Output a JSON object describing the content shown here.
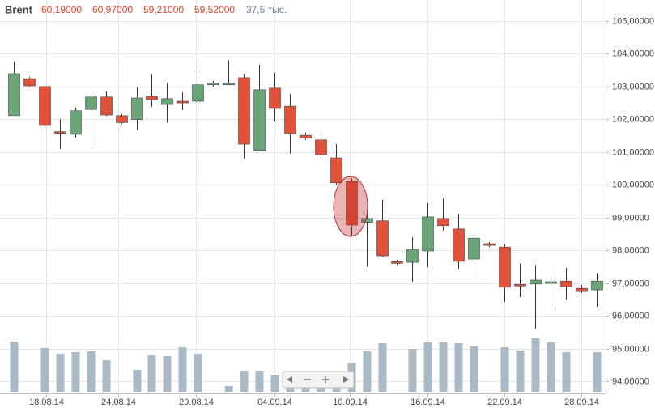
{
  "chart_data": {
    "type": "candlestick",
    "header": {
      "symbol": "Brent",
      "open": "60,19000",
      "high": "60,97000",
      "low": "59,21000",
      "close": "59,52000",
      "volume": "37,5 тыс."
    },
    "x": [
      0,
      1,
      2,
      3,
      4,
      5,
      6,
      7,
      8,
      9,
      10,
      11,
      12,
      13,
      14,
      15,
      16,
      17,
      18,
      19,
      20,
      21,
      22,
      23,
      24,
      25,
      26,
      27,
      28,
      29,
      30,
      31,
      32,
      33,
      34,
      35,
      36,
      37,
      38
    ],
    "open": [
      102.11,
      103.24,
      103.0,
      101.62,
      101.54,
      102.3,
      102.68,
      102.11,
      101.99,
      102.7,
      102.45,
      102.55,
      102.55,
      103.08,
      103.08,
      103.27,
      101.05,
      102.95,
      102.4,
      101.51,
      101.37,
      100.82,
      100.1,
      98.85,
      98.9,
      97.65,
      97.63,
      97.98,
      98.97,
      98.65,
      97.73,
      98.2,
      98.1,
      96.96,
      96.97,
      97.0,
      97.06,
      96.84,
      96.79
    ],
    "high": [
      103.76,
      103.29,
      103.0,
      102.0,
      102.35,
      102.75,
      102.85,
      102.16,
      102.97,
      103.37,
      103.1,
      102.82,
      103.29,
      103.17,
      103.8,
      103.37,
      103.67,
      103.42,
      102.78,
      101.59,
      101.54,
      101.24,
      100.2,
      99.22,
      99.54,
      97.7,
      98.4,
      99.44,
      99.59,
      99.12,
      98.47,
      98.25,
      98.18,
      97.6,
      97.55,
      97.53,
      97.46,
      96.94,
      97.31
    ],
    "low": [
      102.1,
      103.0,
      100.1,
      101.1,
      101.44,
      101.2,
      102.1,
      101.86,
      101.69,
      102.38,
      101.9,
      102.28,
      102.5,
      103.0,
      103.05,
      100.8,
      101.05,
      101.93,
      100.95,
      101.37,
      100.8,
      100.0,
      98.45,
      97.5,
      97.8,
      97.55,
      97.04,
      97.48,
      98.6,
      97.44,
      97.24,
      98.1,
      96.42,
      96.57,
      95.6,
      96.22,
      96.5,
      96.69,
      96.27
    ],
    "close": [
      103.39,
      103.02,
      101.81,
      101.58,
      102.26,
      102.68,
      102.13,
      101.9,
      102.65,
      102.6,
      102.63,
      102.5,
      103.05,
      103.1,
      103.1,
      101.24,
      102.9,
      102.33,
      101.56,
      101.42,
      100.92,
      100.06,
      98.77,
      98.97,
      97.83,
      97.6,
      98.03,
      99.02,
      98.75,
      97.66,
      98.37,
      98.15,
      96.87,
      96.93,
      97.09,
      97.04,
      96.89,
      96.74,
      97.06
    ],
    "volume": [
      62,
      null,
      54,
      47,
      49,
      50,
      39,
      null,
      27,
      45,
      44,
      55,
      47,
      null,
      7,
      26,
      26,
      21,
      21,
      22,
      25,
      25,
      36,
      50,
      60,
      null,
      53,
      61,
      61,
      60,
      56,
      null,
      55,
      51,
      66,
      61,
      49,
      null,
      49
    ],
    "volume_ylim": [
      0,
      70
    ],
    "xlim": [
      -0.9,
      38.6
    ],
    "xticks": [
      {
        "value": 2.1,
        "label": "18.08.14"
      },
      {
        "value": 6.8,
        "label": "24.08.14"
      },
      {
        "value": 11.9,
        "label": "29.08.14"
      },
      {
        "value": 17,
        "label": "04.09.14"
      },
      {
        "value": 21.9,
        "label": "10.09.14"
      },
      {
        "value": 27,
        "label": "16.09.14"
      },
      {
        "value": 32,
        "label": "22.09.14"
      },
      {
        "value": 37,
        "label": "28.09.14"
      }
    ],
    "ylim": [
      93.63,
      105.64
    ],
    "yticks": [
      {
        "value": 94,
        "label": "94,00000"
      },
      {
        "value": 95,
        "label": "95,00000"
      },
      {
        "value": 96,
        "label": "96,00000"
      },
      {
        "value": 97,
        "label": "97,00000"
      },
      {
        "value": 98,
        "label": "98,00000"
      },
      {
        "value": 99,
        "label": "99,00000"
      },
      {
        "value": 100,
        "label": "100,00000"
      },
      {
        "value": 101,
        "label": "101,00000"
      },
      {
        "value": 102,
        "label": "102,00000"
      },
      {
        "value": 103,
        "label": "103,00000"
      },
      {
        "value": 104,
        "label": "104,00000"
      },
      {
        "value": 105,
        "label": "105,00000"
      }
    ],
    "up_color": "#6aa57a",
    "down_color": "#e0533a",
    "volume_color": "#a9b9c6",
    "grid": true
  }
}
